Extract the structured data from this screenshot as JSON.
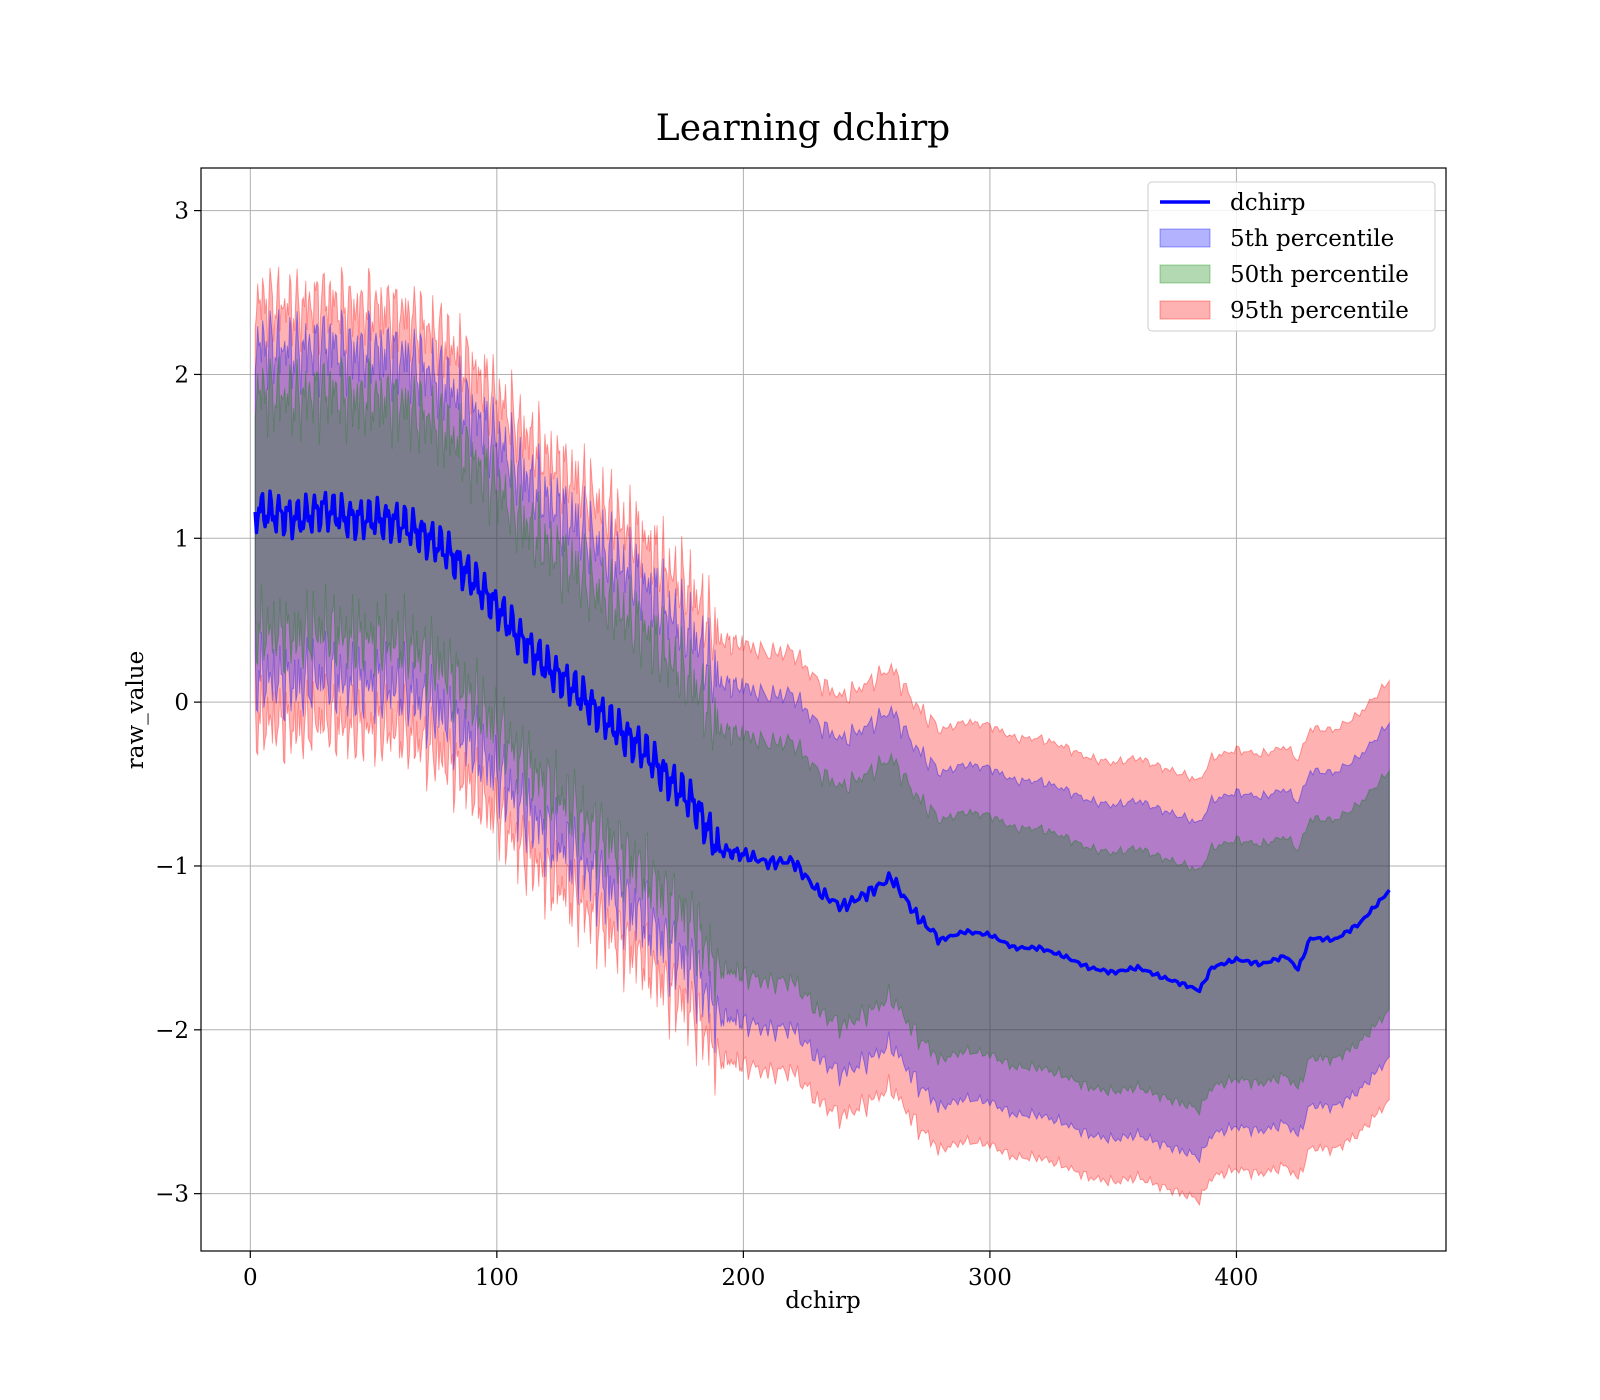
{
  "chart_data": {
    "type": "area",
    "title": "Learning dchirp",
    "xlabel": "dchirp",
    "ylabel": "raw_value",
    "xlim": [
      -20,
      485
    ],
    "ylim": [
      -3.35,
      3.26
    ],
    "xticks": [
      0,
      100,
      200,
      300,
      400
    ],
    "xtick_labels": [
      "0",
      "100",
      "200",
      "300",
      "400"
    ],
    "yticks": [
      -3,
      -2,
      -1,
      0,
      1,
      2,
      3
    ],
    "ytick_labels": [
      "−3",
      "−2",
      "−1",
      "0",
      "1",
      "2",
      "3"
    ],
    "grid": true,
    "legend_position": "top-right",
    "colors": {
      "line": "#0000ff",
      "band_5": "#0000ff",
      "band_50": "#008000",
      "band_95": "#ff0000"
    },
    "legend": [
      {
        "key": "line",
        "label": "dchirp",
        "kind": "line",
        "color": "#0000ff"
      },
      {
        "key": "p5",
        "label": "5th percentile",
        "kind": "patch",
        "color": "#0000ff"
      },
      {
        "key": "p50",
        "label": "50th percentile",
        "kind": "patch",
        "color": "#008000"
      },
      {
        "key": "p95",
        "label": "95th percentile",
        "kind": "patch",
        "color": "#ff0000"
      }
    ],
    "series": [
      {
        "name": "dchirp",
        "x": [
          2,
          10,
          20,
          30,
          40,
          50,
          60,
          70,
          80,
          90,
          100,
          110,
          120,
          130,
          140,
          150,
          160,
          170,
          180,
          190,
          200,
          210,
          220,
          230,
          240,
          250,
          260,
          270,
          280,
          290,
          300,
          310,
          320,
          330,
          340,
          350,
          360,
          370,
          380,
          385,
          390,
          400,
          410,
          420,
          425,
          430,
          440,
          450,
          462
        ],
        "y": [
          1.17,
          1.15,
          1.12,
          1.18,
          1.12,
          1.12,
          1.1,
          1.02,
          0.92,
          0.75,
          0.58,
          0.38,
          0.22,
          0.1,
          -0.05,
          -0.18,
          -0.3,
          -0.48,
          -0.62,
          -0.9,
          -0.93,
          -0.98,
          -0.97,
          -1.15,
          -1.25,
          -1.17,
          -1.07,
          -1.3,
          -1.45,
          -1.4,
          -1.42,
          -1.5,
          -1.5,
          -1.55,
          -1.62,
          -1.65,
          -1.62,
          -1.68,
          -1.73,
          -1.76,
          -1.62,
          -1.57,
          -1.6,
          -1.55,
          -1.63,
          -1.44,
          -1.45,
          -1.35,
          -1.15
        ]
      },
      {
        "name": "95th percentile",
        "x": [
          2,
          462
        ],
        "lower_offset": -1.28,
        "upper_offset": 1.28
      },
      {
        "name": "5th percentile",
        "x": [
          2,
          462
        ],
        "lower_offset": -1.02,
        "upper_offset": 1.02
      },
      {
        "name": "50th percentile",
        "x": [
          2,
          462
        ],
        "lower_offset": -0.73,
        "upper_offset": 0.73
      }
    ]
  }
}
